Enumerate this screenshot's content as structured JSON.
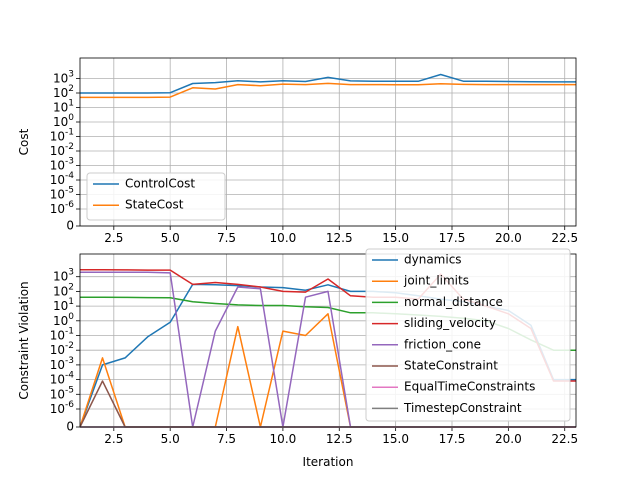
{
  "chart_data": [
    {
      "type": "line",
      "ylabel": "Cost",
      "xlabel": "",
      "y_scale": "symlog",
      "xlim": [
        1,
        23
      ],
      "ylim": [
        0,
        3000
      ],
      "grid": true,
      "legend_position": "lower left",
      "x_ticks": [
        "2.5",
        "5.0",
        "7.5",
        "10.0",
        "12.5",
        "15.0",
        "17.5",
        "20.0",
        "22.5"
      ],
      "y_ticks": [
        "0",
        "10^-6",
        "10^-5",
        "10^-4",
        "10^-3",
        "10^-2",
        "10^-1",
        "10^0",
        "10^1",
        "10^2",
        "10^3"
      ],
      "x": [
        1,
        2,
        3,
        4,
        5,
        6,
        7,
        8,
        9,
        10,
        11,
        12,
        13,
        14,
        15,
        16,
        17,
        18,
        19,
        20,
        21,
        22,
        23
      ],
      "series": [
        {
          "name": "ControlCost",
          "color": "#1f77b4",
          "values": [
            100,
            100,
            100,
            100,
            105,
            450,
            520,
            700,
            580,
            700,
            620,
            1200,
            680,
            640,
            640,
            640,
            1900,
            650,
            650,
            620,
            600,
            580,
            580
          ]
        },
        {
          "name": "StateCost",
          "color": "#ff7f0e",
          "values": [
            50,
            50,
            50,
            50,
            52,
            230,
            190,
            380,
            320,
            410,
            380,
            460,
            380,
            380,
            370,
            370,
            430,
            390,
            380,
            380,
            380,
            380,
            380
          ]
        }
      ]
    },
    {
      "type": "line",
      "ylabel": "Constraint Violation",
      "xlabel": "Iteration",
      "y_scale": "symlog",
      "xlim": [
        1,
        23
      ],
      "ylim": [
        0,
        10000
      ],
      "grid": true,
      "legend_position": "right",
      "x_ticks": [
        "2.5",
        "5.0",
        "7.5",
        "10.0",
        "12.5",
        "15.0",
        "17.5",
        "20.0",
        "22.5"
      ],
      "y_ticks": [
        "0",
        "10^-6",
        "10^-5",
        "10^-4",
        "10^-3",
        "10^-2",
        "10^-1",
        "10^0",
        "10^1",
        "10^2",
        "10^3"
      ],
      "x": [
        1,
        2,
        3,
        4,
        5,
        6,
        7,
        8,
        9,
        10,
        11,
        12,
        13,
        14,
        15,
        16,
        17,
        18,
        19,
        20,
        21,
        22,
        23
      ],
      "series": [
        {
          "name": "dynamics",
          "color": "#1f77b4",
          "values": [
            0,
            0.001,
            0.003,
            0.08,
            0.8,
            300,
            280,
            250,
            200,
            180,
            120,
            280,
            100,
            100,
            80,
            50,
            30,
            20,
            10,
            5,
            0.5,
            0.0001,
            0.0001
          ]
        },
        {
          "name": "joint_limits",
          "color": "#ff7f0e",
          "values": [
            0,
            0.003,
            0,
            0,
            0,
            0,
            0,
            0.4,
            0,
            0.2,
            0.1,
            3,
            0,
            0,
            0,
            0,
            0,
            0,
            0,
            0,
            0,
            0,
            0
          ]
        },
        {
          "name": "normal_distance",
          "color": "#2ca02c",
          "values": [
            40,
            40,
            39,
            38,
            37,
            20,
            15,
            12,
            11,
            11,
            9,
            8,
            3.5,
            3.5,
            3,
            2.5,
            2,
            1.5,
            1,
            0.3,
            0.05,
            0.01,
            0.01
          ]
        },
        {
          "name": "sliding_velocity",
          "color": "#d62728",
          "values": [
            3000,
            3000,
            2900,
            2800,
            2800,
            300,
            400,
            300,
            200,
            100,
            90,
            700,
            50,
            40,
            40,
            30,
            1500,
            30,
            10,
            3,
            0.3,
            8e-05,
            8e-05
          ]
        },
        {
          "name": "friction_cone",
          "color": "#9467bd",
          "values": [
            2000,
            2000,
            2000,
            2000,
            1800,
            0,
            0.2,
            200,
            150,
            0,
            40,
            100,
            0,
            0,
            0,
            0,
            0,
            0,
            0,
            0,
            0,
            0,
            0
          ]
        },
        {
          "name": "StateConstraint",
          "color": "#8c564b",
          "values": [
            0,
            8e-05,
            0,
            0,
            0,
            0,
            0,
            0,
            0,
            0,
            0,
            0,
            0,
            0,
            0,
            0,
            0,
            0,
            0,
            0,
            0,
            0,
            0
          ]
        },
        {
          "name": "EqualTimeConstraints",
          "color": "#e377c2",
          "values": [
            0,
            0,
            0,
            0,
            0,
            0,
            0,
            0,
            0,
            0,
            0,
            0,
            0,
            0,
            0,
            0,
            0,
            0,
            0,
            0,
            0,
            0,
            0
          ]
        },
        {
          "name": "TimestepConstraint",
          "color": "#7f7f7f",
          "values": [
            0,
            0,
            0,
            0,
            0,
            0,
            0,
            0,
            0,
            0,
            0,
            0,
            0,
            0,
            0,
            0,
            0,
            0,
            0,
            0,
            0,
            0,
            0
          ]
        }
      ]
    }
  ]
}
